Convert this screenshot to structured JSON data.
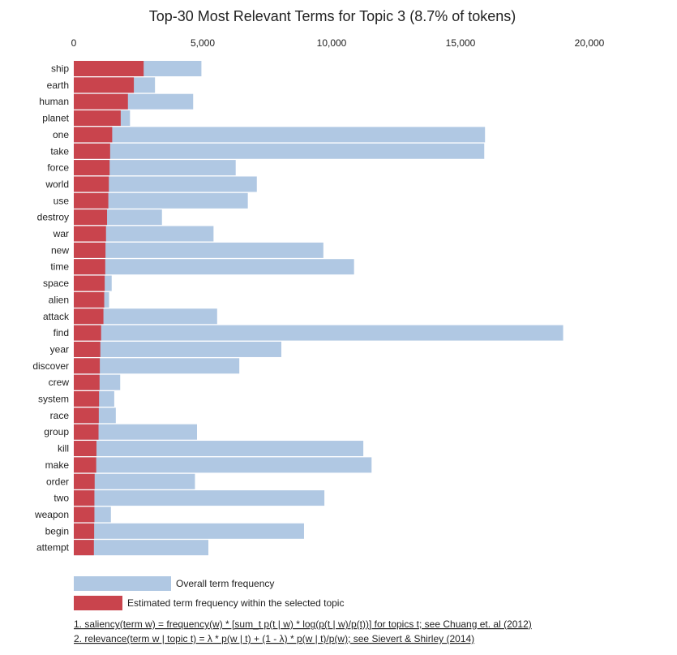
{
  "chart_data": {
    "type": "bar",
    "orientation": "horizontal",
    "stacked": "overlay",
    "title": "Top-30 Most Relevant Terms for Topic 3 (8.7% of tokens)",
    "xlim": [
      0,
      20000
    ],
    "x_ticks": [
      0,
      5000,
      10000,
      15000,
      20000
    ],
    "x_tick_labels": [
      "0",
      "5,000",
      "10,000",
      "15,000",
      "20,000"
    ],
    "categories": [
      "ship",
      "earth",
      "human",
      "planet",
      "one",
      "take",
      "force",
      "world",
      "use",
      "destroy",
      "war",
      "new",
      "time",
      "space",
      "alien",
      "attack",
      "find",
      "year",
      "discover",
      "crew",
      "system",
      "race",
      "group",
      "kill",
      "make",
      "order",
      "two",
      "weapon",
      "begin",
      "attempt"
    ],
    "series": [
      {
        "name": "Overall term frequency",
        "color": "#b0c8e3",
        "values": [
          4950,
          3150,
          4630,
          2180,
          15950,
          15920,
          6280,
          7100,
          6750,
          3420,
          5420,
          9680,
          10870,
          1470,
          1370,
          5560,
          18980,
          8050,
          6420,
          1800,
          1570,
          1630,
          4780,
          11230,
          11550,
          4700,
          9720,
          1440,
          8930,
          5220
        ]
      },
      {
        "name": "Estimated term frequency within the selected topic",
        "color": "#c9444d",
        "values": [
          2710,
          2330,
          2100,
          1820,
          1490,
          1410,
          1390,
          1360,
          1340,
          1290,
          1250,
          1230,
          1220,
          1200,
          1180,
          1150,
          1060,
          1030,
          1010,
          1000,
          980,
          970,
          960,
          880,
          870,
          810,
          800,
          800,
          790,
          780
        ]
      }
    ],
    "legend": {
      "position": "bottom-left",
      "entries": [
        "Overall term frequency",
        "Estimated term frequency within the selected topic"
      ]
    },
    "footnotes": [
      "1. saliency(term w) = frequency(w) * [sum_t p(t | w) * log(p(t | w)/p(t))] for topics t; see Chuang et. al (2012)",
      "2. relevance(term w | topic t) = λ * p(w | t) + (1 - λ) * p(w | t)/p(w); see Sievert & Shirley (2014)"
    ]
  }
}
